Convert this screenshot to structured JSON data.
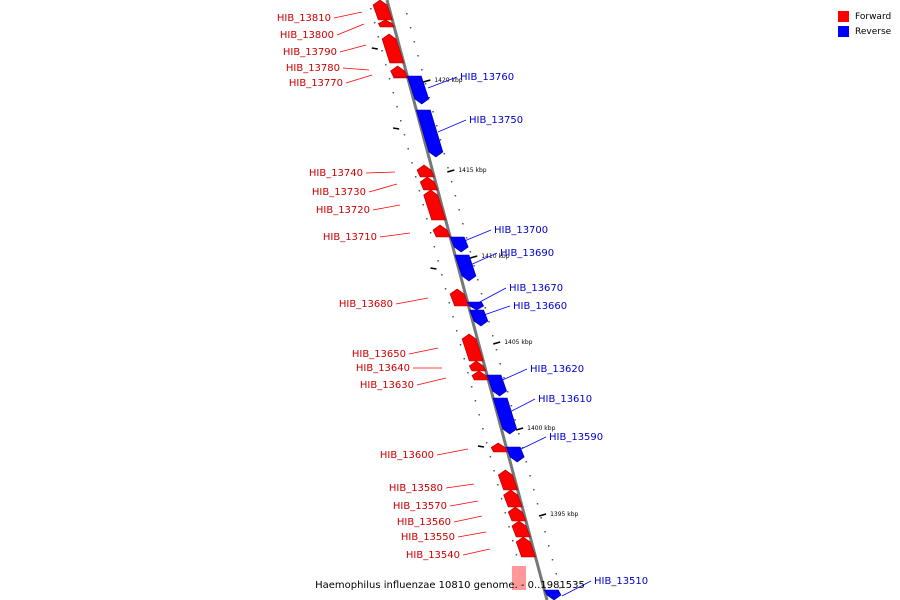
{
  "legend": {
    "items": [
      {
        "label": "Forward",
        "color": "#ff0000"
      },
      {
        "label": "Reverse",
        "color": "#0000ff"
      }
    ]
  },
  "colors": {
    "forward": "#ff0000",
    "reverse": "#0000ff",
    "forward_label": "#cc0000",
    "reverse_label": "#0000cc",
    "backbone": "#777777",
    "highlight": "#ff9999"
  },
  "axis_ticks": [
    "1420 kbp",
    "1415 kbp",
    "1410 kbp",
    "1405 kbp",
    "1400 kbp",
    "1395 kbp"
  ],
  "caption": "Haemophilus influenzae 10810 genome. - 0..1981535",
  "genes": [
    {
      "id": "HIB_13810",
      "strand": "forward"
    },
    {
      "id": "HIB_13800",
      "strand": "forward"
    },
    {
      "id": "HIB_13790",
      "strand": "forward"
    },
    {
      "id": "HIB_13780",
      "strand": "forward"
    },
    {
      "id": "HIB_13770",
      "strand": "forward"
    },
    {
      "id": "HIB_13760",
      "strand": "reverse"
    },
    {
      "id": "HIB_13750",
      "strand": "reverse"
    },
    {
      "id": "HIB_13740",
      "strand": "forward"
    },
    {
      "id": "HIB_13730",
      "strand": "forward"
    },
    {
      "id": "HIB_13720",
      "strand": "forward"
    },
    {
      "id": "HIB_13710",
      "strand": "forward"
    },
    {
      "id": "HIB_13700",
      "strand": "reverse"
    },
    {
      "id": "HIB_13690",
      "strand": "reverse"
    },
    {
      "id": "HIB_13680",
      "strand": "forward"
    },
    {
      "id": "HIB_13670",
      "strand": "reverse"
    },
    {
      "id": "HIB_13660",
      "strand": "reverse"
    },
    {
      "id": "HIB_13650",
      "strand": "forward"
    },
    {
      "id": "HIB_13640",
      "strand": "forward"
    },
    {
      "id": "HIB_13630",
      "strand": "forward"
    },
    {
      "id": "HIB_13620",
      "strand": "reverse"
    },
    {
      "id": "HIB_13610",
      "strand": "reverse"
    },
    {
      "id": "HIB_13590",
      "strand": "reverse"
    },
    {
      "id": "HIB_13600",
      "strand": "forward"
    },
    {
      "id": "HIB_13580",
      "strand": "forward"
    },
    {
      "id": "HIB_13570",
      "strand": "forward"
    },
    {
      "id": "HIB_13560",
      "strand": "forward"
    },
    {
      "id": "HIB_13550",
      "strand": "forward"
    },
    {
      "id": "HIB_13540",
      "strand": "forward"
    },
    {
      "id": "HIB_13510",
      "strand": "reverse"
    }
  ]
}
